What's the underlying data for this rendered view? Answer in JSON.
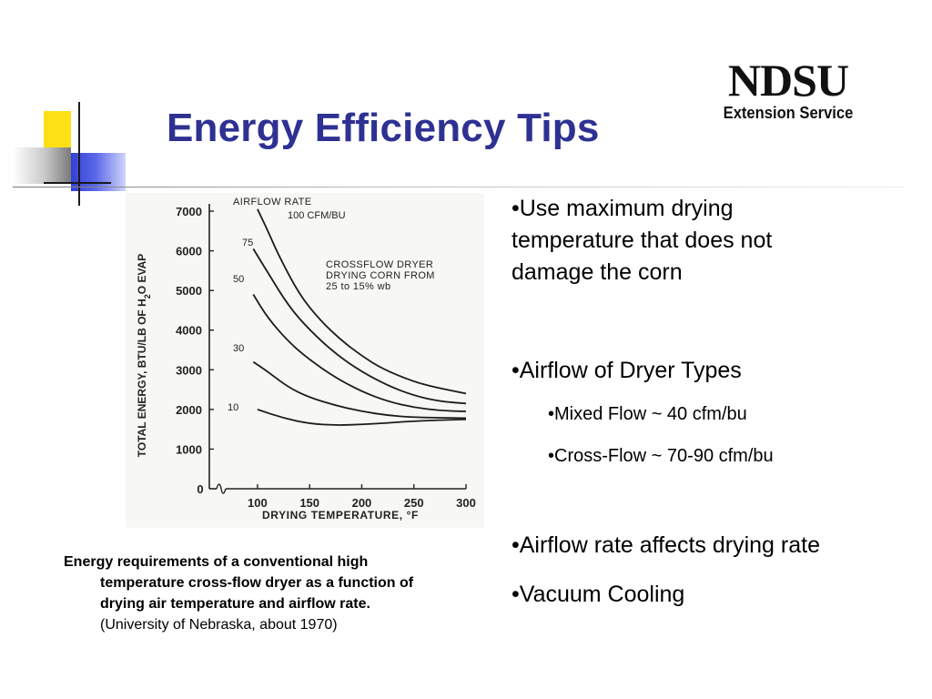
{
  "slide": {
    "title": "Energy Efficiency Tips",
    "logo": {
      "main": "NDSU",
      "sub": "Extension Service"
    },
    "bullets": [
      {
        "text": "•Use maximum drying temperature that does not damage the corn",
        "lines": [
          "•Use maximum drying",
          "temperature that does not",
          "damage the corn"
        ],
        "level": 1
      },
      {
        "text": "•Airflow of Dryer Types",
        "level": 1
      },
      {
        "text": "•Mixed Flow ~ 40 cfm/bu",
        "level": 2
      },
      {
        "text": "•Cross-Flow ~ 70-90 cfm/bu",
        "level": 2
      },
      {
        "text": "•Airflow rate affects drying rate",
        "level": 1
      },
      {
        "text": "•Vacuum Cooling",
        "level": 1
      }
    ],
    "caption": {
      "bold_lines": [
        "Energy requirements of a conventional high",
        "temperature cross-flow dryer as a function of",
        "drying air temperature and airflow rate."
      ],
      "source": "(University of Nebraska, about 1970)"
    }
  },
  "chart_data": {
    "type": "line",
    "title": "",
    "annotation": [
      "CROSSFLOW DRYER",
      "DRYING CORN FROM",
      "25 to 15% wb"
    ],
    "legend_title": "AIRFLOW RATE",
    "xlabel": "DRYING TEMPERATURE, °F",
    "ylabel": "TOTAL ENERGY, BTU/LB OF H2O EVAP",
    "ylabel_parts": {
      "before": "TOTAL ENERGY, BTU/LB OF H",
      "sub": "2",
      "after": "O EVAP"
    },
    "xlim": [
      80,
      300
    ],
    "ylim": [
      0,
      7000
    ],
    "x_ticks": [
      100,
      150,
      200,
      250,
      300
    ],
    "y_ticks": [
      1000,
      2000,
      3000,
      4000,
      5000,
      6000,
      7000
    ],
    "x_origin_label": "0",
    "grid": false,
    "series": [
      {
        "name": "100 CFM/BU",
        "label": "100 CFM/BU",
        "x": [
          100,
          110,
          120,
          140,
          160,
          180,
          200,
          220,
          250,
          270,
          300
        ],
        "y": [
          7050,
          6500,
          5900,
          4900,
          4250,
          3750,
          3350,
          3020,
          2700,
          2560,
          2400
        ]
      },
      {
        "name": "75",
        "label": "75",
        "x": [
          96,
          110,
          130,
          150,
          175,
          200,
          225,
          250,
          275,
          300
        ],
        "y": [
          6050,
          5450,
          4600,
          4000,
          3400,
          2950,
          2600,
          2350,
          2200,
          2150
        ]
      },
      {
        "name": "50",
        "label": "50",
        "x": [
          96,
          110,
          130,
          150,
          175,
          200,
          225,
          250,
          275,
          300
        ],
        "y": [
          4900,
          4300,
          3700,
          3250,
          2800,
          2450,
          2200,
          2050,
          1970,
          1950
        ]
      },
      {
        "name": "30",
        "label": "30",
        "x": [
          96,
          110,
          130,
          150,
          175,
          200,
          225,
          250,
          300
        ],
        "y": [
          3200,
          2950,
          2550,
          2300,
          2100,
          1950,
          1850,
          1800,
          1780
        ]
      },
      {
        "name": "10",
        "label": "10",
        "x": [
          100,
          125,
          150,
          175,
          200,
          225,
          250,
          300
        ],
        "y": [
          2000,
          1780,
          1640,
          1600,
          1620,
          1660,
          1710,
          1750
        ]
      }
    ]
  }
}
